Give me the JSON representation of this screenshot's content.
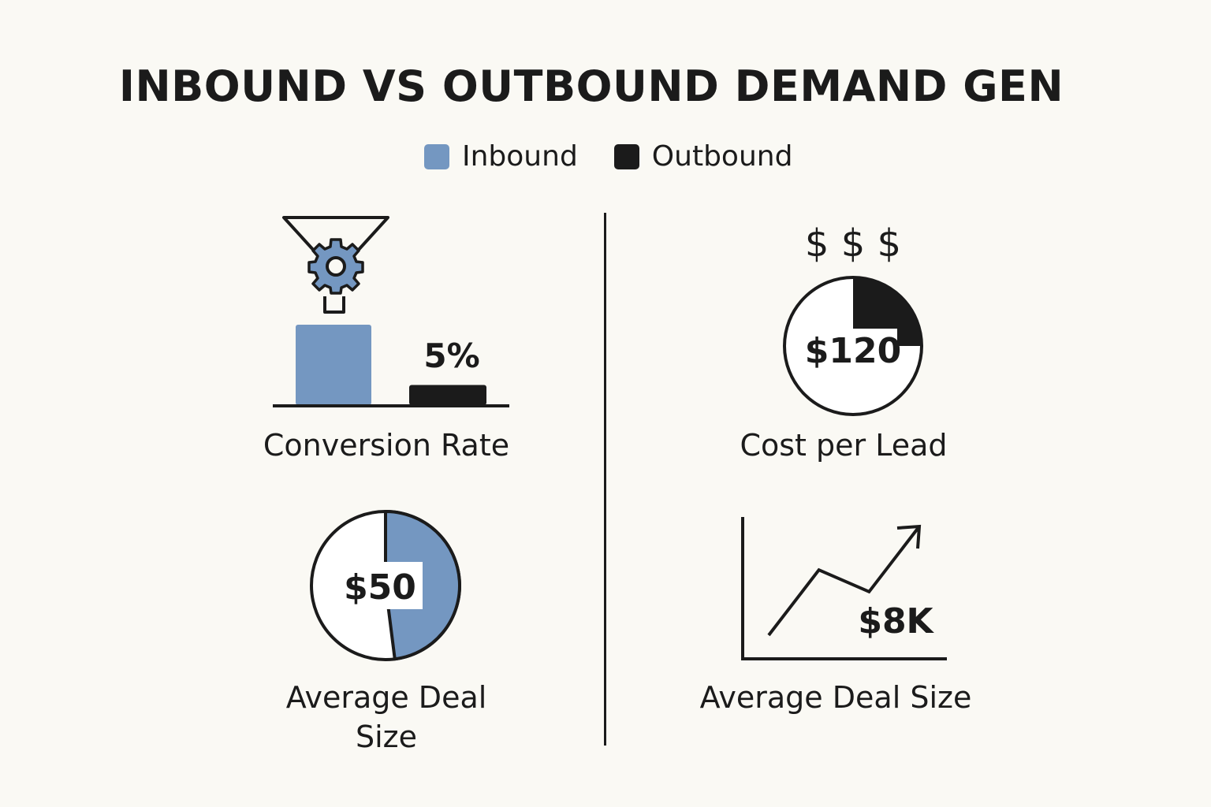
{
  "title": "INBOUND VS OUTBOUND DEMAND GEN",
  "legend": [
    {
      "name": "Inbound",
      "color": "#7497c1"
    },
    {
      "name": "Outbound",
      "color": "#1b1b1b"
    }
  ],
  "colors": {
    "inbound": "#7497c1",
    "outbound": "#1b1b1b",
    "background": "#faf9f4"
  },
  "panels": {
    "conversion": {
      "label": "Conversion Rate",
      "value_label": "5%",
      "icon": "funnel-gear-icon"
    },
    "cost": {
      "label": "Cost per Lead",
      "symbols": "$ $ $",
      "value_label": "$120"
    },
    "deal_left": {
      "label_line1": "Average Deal",
      "label_line2": "Size",
      "value_label": "$50"
    },
    "deal_right": {
      "label": "Average Deal Size",
      "value_label": "$8K",
      "icon": "trend-arrow-icon"
    }
  },
  "chart_data": [
    {
      "type": "bar",
      "title": "Conversion Rate",
      "categories": [
        "Inbound",
        "Outbound"
      ],
      "values": [
        20,
        5
      ],
      "units": "%",
      "data_labels": [
        "",
        "5%"
      ]
    },
    {
      "type": "pie",
      "title": "Cost per Lead",
      "slices": [
        {
          "name": "Outbound",
          "fraction": 0.25
        },
        {
          "name": "",
          "fraction": 0.75
        }
      ],
      "center_label": "$120"
    },
    {
      "type": "pie",
      "title": "Average Deal Size",
      "slices": [
        {
          "name": "Inbound",
          "fraction": 0.48
        },
        {
          "name": "",
          "fraction": 0.52
        }
      ],
      "center_label": "$50"
    },
    {
      "type": "line",
      "title": "Average Deal Size",
      "x": [
        0,
        1,
        2,
        3
      ],
      "y": [
        0,
        3,
        2,
        5
      ],
      "data_label": "$8K"
    }
  ]
}
